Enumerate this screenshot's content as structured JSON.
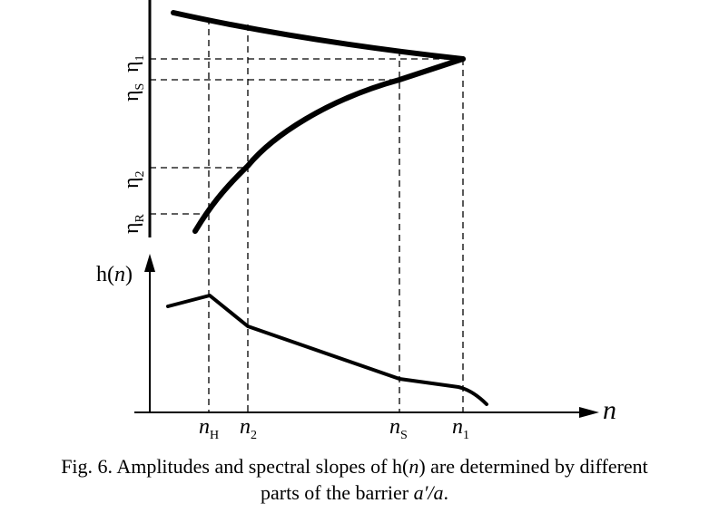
{
  "figure": {
    "upper_axis_ticks": [
      {
        "base": "η",
        "sub": "1"
      },
      {
        "base": "η",
        "sub": "S"
      },
      {
        "base": "η",
        "sub": "2"
      },
      {
        "base": "η",
        "sub": "R"
      }
    ],
    "lower_y_label": {
      "pre": "h(",
      "var": "n",
      "post": ")"
    },
    "x_axis_label": "n",
    "x_ticks": [
      {
        "base": "n",
        "sub": "H"
      },
      {
        "base": "n",
        "sub": "2"
      },
      {
        "base": "n",
        "sub": "S"
      },
      {
        "base": "n",
        "sub": "1"
      }
    ]
  },
  "caption": {
    "line1": "Fig. 6. Amplitudes and spectral slopes of h(",
    "var": "n",
    "line1_end": ") are determined by different",
    "line2": "parts of the barrier ",
    "ratio": "a′/a",
    "end": "."
  }
}
